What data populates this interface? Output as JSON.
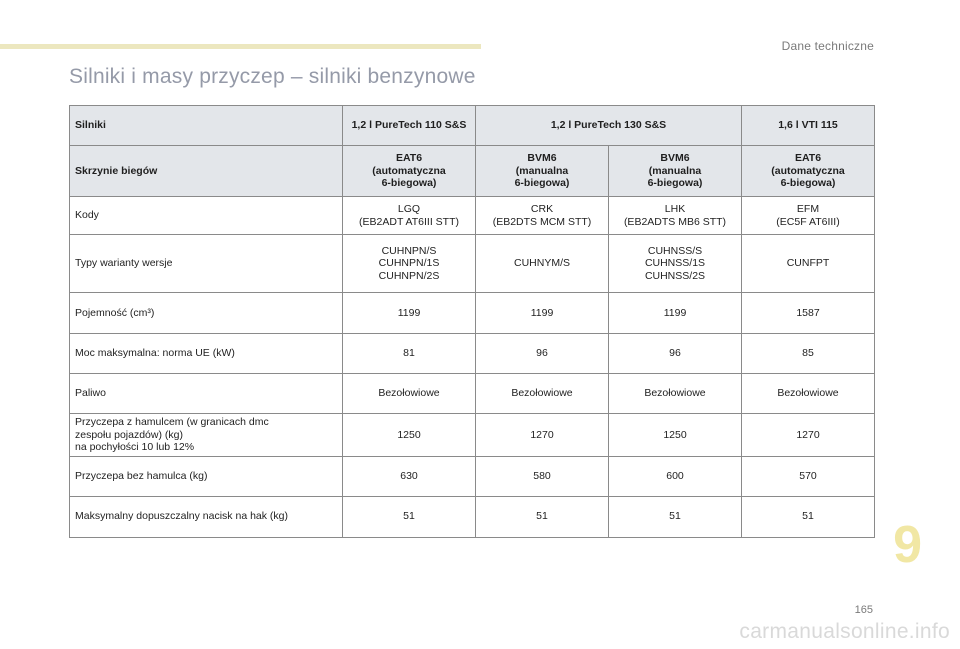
{
  "header": {
    "section": "Dane techniczne"
  },
  "title": "Silniki i masy przyczep – silniki benzynowe",
  "table": {
    "head_label": "Silniki",
    "engines": [
      "1,2 l PureTech 110 S&S",
      "1,2 l PureTech 130 S&S",
      "1,6 l VTI 115"
    ],
    "gearbox_label": "Skrzynie biegów",
    "gearboxes": [
      "EAT6\n(automatyczna\n6-biegowa)",
      "BVM6\n(manualna\n6-biegowa)",
      "BVM6\n(manualna\n6-biegowa)",
      "EAT6\n(automatyczna\n6-biegowa)"
    ],
    "rows": [
      {
        "label": "Kody",
        "values": [
          "LGQ\n(EB2ADT AT6III STT)",
          "CRK\n(EB2DTS MCM STT)",
          "LHK\n(EB2ADTS MB6 STT)",
          "EFM\n(EC5F AT6III)"
        ]
      },
      {
        "label": "Typy warianty wersje",
        "values": [
          "CUHNPN/S\nCUHNPN/1S\nCUHNPN/2S",
          "CUHNYM/S",
          "CUHNSS/S\nCUHNSS/1S\nCUHNSS/2S",
          "CUNFPT"
        ]
      },
      {
        "label": "Pojemność (cm³)",
        "values": [
          "1199",
          "1199",
          "1199",
          "1587"
        ]
      },
      {
        "label": "Moc maksymalna: norma UE (kW)",
        "values": [
          "81",
          "96",
          "96",
          "85"
        ]
      },
      {
        "label": "Paliwo",
        "values": [
          "Bezołowiowe",
          "Bezołowiowe",
          "Bezołowiowe",
          "Bezołowiowe"
        ]
      },
      {
        "label": "Przyczepa z hamulcem (w granicach dmc\nzespołu pojazdów) (kg)\nna pochyłości 10 lub 12%",
        "values": [
          "1250",
          "1270",
          "1250",
          "1270"
        ]
      },
      {
        "label": "Przyczepa bez hamulca (kg)",
        "values": [
          "630",
          "580",
          "600",
          "570"
        ]
      },
      {
        "label": "Maksymalny dopuszczalny nacisk na hak (kg)",
        "values": [
          "51",
          "51",
          "51",
          "51"
        ]
      }
    ]
  },
  "chapter_number": "9",
  "page_number": "165",
  "watermark": "carmanualsonline.info",
  "colors": {
    "accent_bar": "#ece7bf",
    "title": "#959aa8",
    "header_fill": "#e3e6ea",
    "chapter_number": "#f1e7a4"
  }
}
